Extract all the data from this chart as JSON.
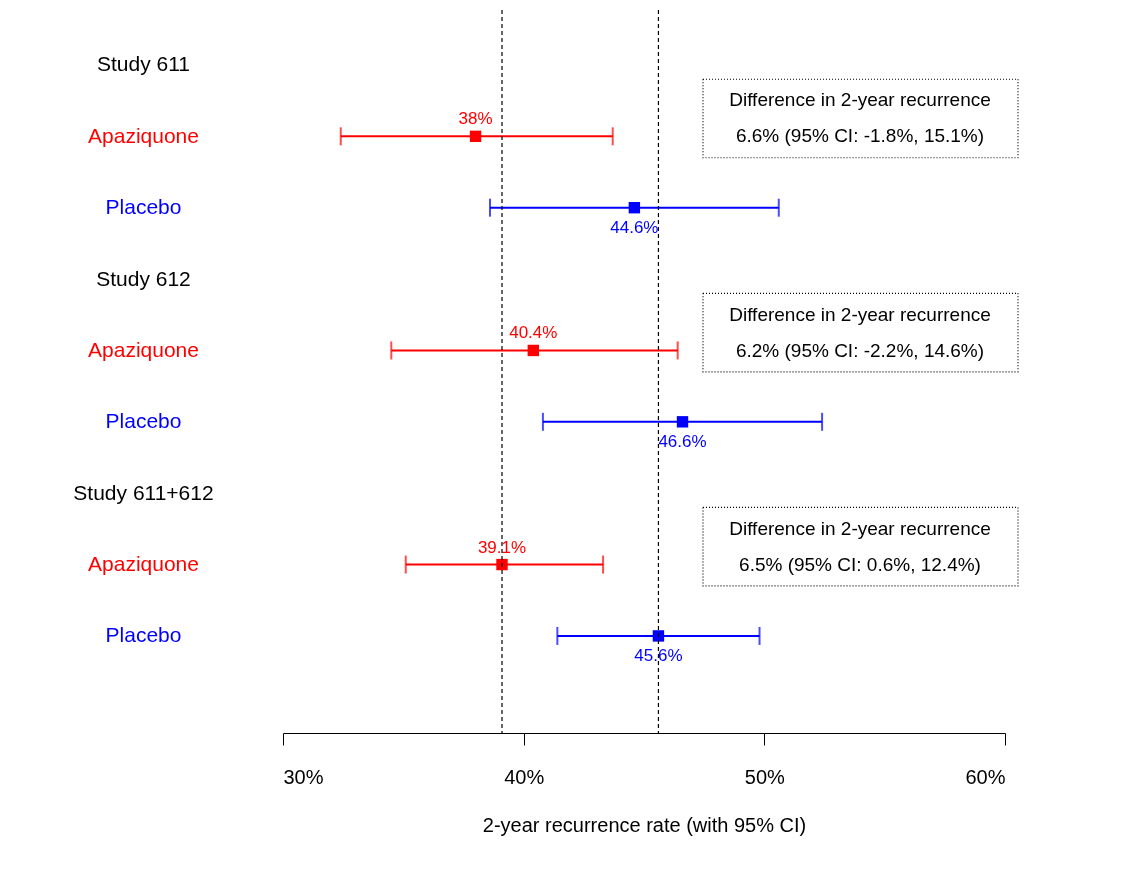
{
  "chart_data": {
    "type": "scatter",
    "orientation": "horizontal",
    "marker": "square",
    "categories": [
      "Study 611",
      null,
      null,
      "Study 612",
      null,
      null,
      "Study 611+612",
      null,
      null
    ],
    "series": [
      {
        "name": "Apaziquone",
        "color": "#ff0000",
        "values": [
          null,
          38,
          null,
          null,
          40.4,
          null,
          null,
          39.1,
          null
        ],
        "errors": [
          null,
          [
            32.4,
            43.7
          ],
          null,
          null,
          [
            34.5,
            46.4
          ],
          null,
          null,
          [
            35.1,
            43.3
          ],
          null
        ],
        "value_labels": [
          null,
          "38%",
          null,
          null,
          "40.4%",
          null,
          null,
          "39.1%",
          null
        ]
      },
      {
        "name": "Placebo",
        "color": "#0000ff",
        "values": [
          null,
          null,
          44.6,
          null,
          null,
          46.6,
          null,
          null,
          45.6
        ],
        "errors": [
          null,
          null,
          [
            38.6,
            50.6
          ],
          null,
          null,
          [
            40.8,
            52.4
          ],
          null,
          null,
          [
            41.4,
            49.8
          ]
        ],
        "value_labels": [
          null,
          null,
          "44.6%",
          null,
          null,
          "46.6%",
          null,
          null,
          "45.6%"
        ]
      }
    ],
    "xlim": [
      30,
      60
    ],
    "xticks": [
      {
        "value": 30,
        "label": "30%"
      },
      {
        "value": 40,
        "label": "40%"
      },
      {
        "value": 50,
        "label": "50%"
      },
      {
        "value": 60,
        "label": "60%"
      }
    ],
    "xlabel": "2-year recurrence rate (with 95% CI)",
    "ref_lines": [
      {
        "axis": "x",
        "value": 39.1,
        "color": "#000000",
        "line_style": "dashed"
      },
      {
        "axis": "x",
        "value": 45.6,
        "color": "#000000",
        "line_style": "dashed"
      }
    ],
    "annotations": [
      "Difference in 2-year recurrence\n6.6% (95% CI: -1.8%, 15.1%)",
      "Difference in 2-year recurrence\n6.2% (95% CI: -2.2%, 14.6%)",
      "Difference in 2-year recurrence\n6.5% (95% CI: 0.6%, 12.4%)"
    ]
  }
}
